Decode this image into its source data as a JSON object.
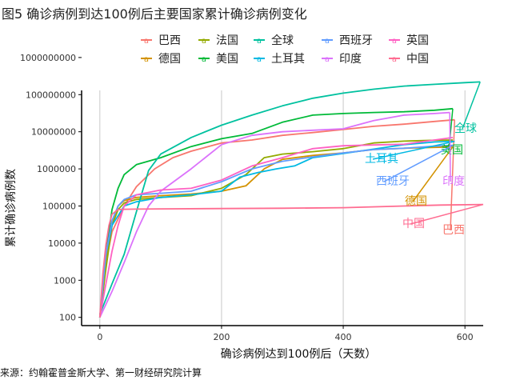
{
  "title": "图5 确诊病例到达100例后主要国家累计确诊病例变化",
  "source": "来源：约翰霍普金斯大学、第一财经研究院计算",
  "chart_data": {
    "type": "line",
    "xlabel": "确诊病例达到100例后（天数）",
    "ylabel": "累计确诊病例数",
    "y_scale": "log10",
    "xlim": [
      -30,
      630
    ],
    "ylim": [
      60,
      130000000
    ],
    "x_ticks": [
      0,
      200,
      400,
      600
    ],
    "x_tick_labels": [
      "0",
      "200",
      "400",
      "600"
    ],
    "y_ticks": [
      100,
      1000,
      10000,
      100000,
      1000000,
      10000000,
      100000000,
      1000000000
    ],
    "y_tick_labels": [
      "100",
      "1000",
      "10000",
      "100000",
      "1000000",
      "10000000",
      "100000000",
      "1000000000"
    ],
    "grid": "vertical major",
    "legend_position": "top",
    "series": [
      {
        "name": "巴西",
        "color": "#F8766D",
        "label": "巴西",
        "x": [
          0,
          10,
          20,
          40,
          60,
          90,
          120,
          150,
          200,
          250,
          300,
          350,
          400,
          450,
          500,
          550,
          583
        ],
        "y": [
          100,
          3000,
          20000,
          100000,
          330000,
          1000000,
          2000000,
          3000000,
          5000000,
          6000000,
          8000000,
          9500000,
          11500000,
          14000000,
          16000000,
          19000000,
          21000000
        ]
      },
      {
        "name": "德国",
        "color": "#D39200",
        "label": "德国",
        "x": [
          0,
          10,
          20,
          30,
          40,
          60,
          100,
          150,
          200,
          240,
          270,
          300,
          350,
          400,
          450,
          500,
          550,
          580
        ],
        "y": [
          100,
          3000,
          30000,
          100000,
          140000,
          170000,
          190000,
          210000,
          250000,
          350000,
          1000000,
          1800000,
          2300000,
          2700000,
          3300000,
          3600000,
          3800000,
          3900000
        ]
      },
      {
        "name": "法国",
        "color": "#93AA00",
        "label": "",
        "x": [
          0,
          10,
          20,
          30,
          40,
          60,
          100,
          150,
          200,
          240,
          270,
          300,
          350,
          400,
          450,
          500,
          550,
          580
        ],
        "y": [
          100,
          2000,
          30000,
          80000,
          120000,
          150000,
          170000,
          190000,
          300000,
          700000,
          2000000,
          2500000,
          2900000,
          3500000,
          5000000,
          5600000,
          5900000,
          6000000
        ]
      },
      {
        "name": "美国",
        "color": "#00BA38",
        "label": "美国",
        "x": [
          0,
          10,
          20,
          30,
          40,
          60,
          100,
          150,
          200,
          250,
          300,
          350,
          400,
          450,
          500,
          550,
          580
        ],
        "y": [
          100,
          5000,
          80000,
          300000,
          700000,
          1300000,
          2000000,
          4000000,
          6500000,
          9000000,
          18000000,
          28000000,
          31000000,
          33000000,
          34500000,
          38000000,
          42000000
        ]
      },
      {
        "name": "全球",
        "color": "#00C19F",
        "label": "全球",
        "x": [
          0,
          20,
          40,
          60,
          80,
          100,
          150,
          200,
          250,
          300,
          350,
          400,
          450,
          500,
          550,
          600,
          625
        ],
        "y": [
          120,
          800,
          5000,
          70000,
          900000,
          2500000,
          7000000,
          15000000,
          28000000,
          50000000,
          80000000,
          110000000,
          140000000,
          170000000,
          190000000,
          210000000,
          220000000
        ]
      },
      {
        "name": "土耳其",
        "color": "#00B9E3",
        "label": "土耳其",
        "x": [
          0,
          10,
          20,
          40,
          60,
          100,
          150,
          200,
          230,
          260,
          290,
          320,
          350,
          400,
          450,
          500,
          550,
          583
        ],
        "y": [
          100,
          5000,
          30000,
          100000,
          130000,
          170000,
          200000,
          250000,
          600000,
          800000,
          1000000,
          1200000,
          2000000,
          2600000,
          3400000,
          4500000,
          5300000,
          5500000
        ]
      },
      {
        "name": "西班牙",
        "color": "#619CFF",
        "label": "西班牙",
        "x": [
          0,
          10,
          20,
          30,
          40,
          60,
          100,
          150,
          200,
          250,
          300,
          350,
          400,
          450,
          500,
          550,
          580
        ],
        "y": [
          100,
          5000,
          40000,
          100000,
          150000,
          200000,
          220000,
          250000,
          450000,
          1000000,
          1600000,
          2100000,
          2700000,
          3300000,
          3600000,
          4100000,
          4300000
        ]
      },
      {
        "name": "印度",
        "color": "#DB72FB",
        "label": "印度",
        "x": [
          0,
          20,
          40,
          60,
          80,
          100,
          150,
          200,
          250,
          300,
          350,
          400,
          450,
          500,
          550,
          575
        ],
        "y": [
          100,
          500,
          3000,
          20000,
          100000,
          250000,
          1000000,
          4500000,
          8000000,
          10000000,
          11000000,
          12000000,
          20000000,
          28000000,
          31000000,
          33000000
        ]
      },
      {
        "name": "英国",
        "color": "#FF61C3",
        "label": "",
        "x": [
          0,
          10,
          20,
          30,
          40,
          60,
          100,
          150,
          200,
          250,
          300,
          350,
          400,
          450,
          500,
          550,
          580
        ],
        "y": [
          100,
          800,
          6000,
          30000,
          100000,
          200000,
          270000,
          300000,
          500000,
          1200000,
          2000000,
          3500000,
          4200000,
          4400000,
          4600000,
          6000000,
          7000000
        ]
      },
      {
        "name": "中国",
        "color": "#FF6C91",
        "label": "中国",
        "x": [
          0,
          5,
          10,
          15,
          20,
          30,
          40,
          60,
          100,
          200,
          300,
          400,
          500,
          560,
          630
        ],
        "y": [
          100,
          1500,
          9000,
          30000,
          60000,
          80000,
          81500,
          82500,
          83500,
          85500,
          87000,
          90000,
          100000,
          106000,
          110000
        ]
      }
    ]
  }
}
